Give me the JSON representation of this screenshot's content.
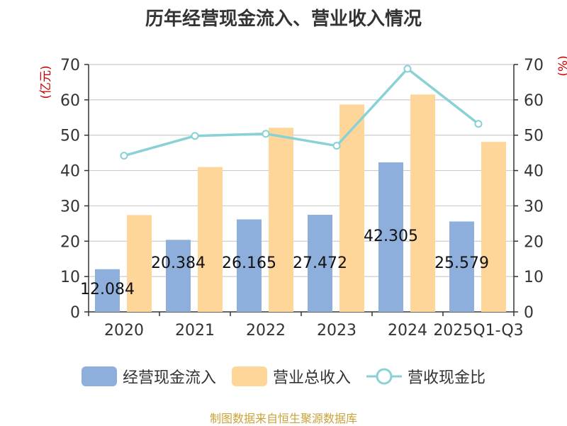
{
  "chart_data": {
    "type": "bar",
    "title": "历年经营现金流入、营业收入情况",
    "categories": [
      "2020",
      "2021",
      "2022",
      "2023",
      "2024",
      "2025Q1-Q3"
    ],
    "series": [
      {
        "name": "经营现金流入",
        "type": "bar",
        "axis": "left",
        "color": "#8eaedb",
        "values": [
          12.084,
          20.384,
          26.165,
          27.472,
          42.305,
          25.579
        ]
      },
      {
        "name": "营业总收入",
        "type": "bar",
        "axis": "left",
        "color": "#ffd699",
        "values": [
          27.4,
          41.0,
          52.1,
          58.7,
          61.5,
          48.1
        ]
      },
      {
        "name": "营收现金比",
        "type": "line",
        "axis": "right",
        "color": "#88d1d4",
        "values": [
          44.2,
          49.8,
          50.4,
          47.0,
          68.8,
          53.2
        ]
      }
    ],
    "data_labels": [
      "12.084",
      "20.384",
      "26.165",
      "27.472",
      "42.305",
      "25.579"
    ],
    "ylabel_left": "(亿元)",
    "ylabel_right": "(%)",
    "ylim_left": [
      0,
      70
    ],
    "ylim_right": [
      0,
      70
    ],
    "yticks": [
      0,
      10,
      20,
      30,
      40,
      50,
      60,
      70
    ],
    "grid": true,
    "legend_position": "bottom"
  },
  "source": "制图数据来自恒生聚源数据库"
}
